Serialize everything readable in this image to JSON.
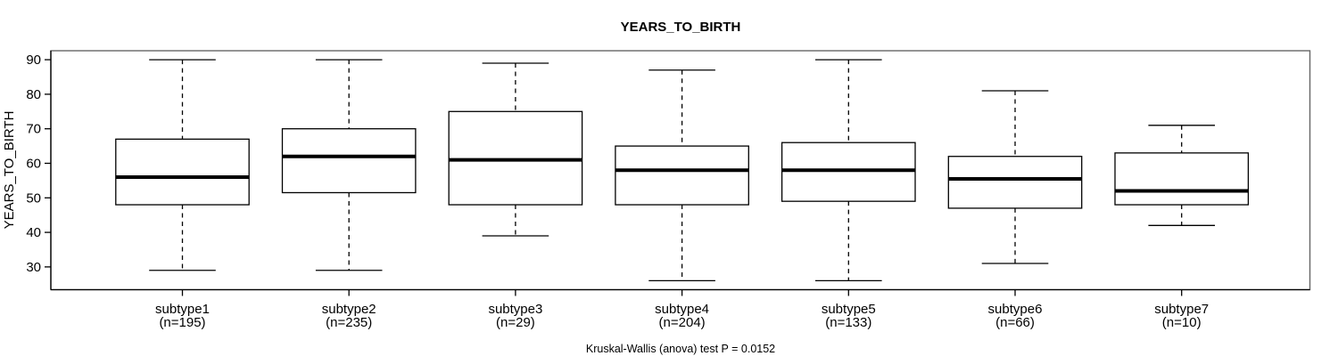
{
  "chart_data": {
    "type": "boxplot",
    "title": "YEARS_TO_BIRTH",
    "ylabel": "YEARS_TO_BIRTH",
    "xlabel": "",
    "footer": "Kruskal-Wallis (anova) test P = 0.0152",
    "ylim": [
      23.4,
      92.6
    ],
    "yticks": [
      30,
      40,
      50,
      60,
      70,
      80,
      90
    ],
    "grid": false,
    "legend": "none",
    "groups": [
      {
        "label": "subtype1",
        "n_label": "(n=195)",
        "n": 195,
        "low": 29,
        "q1": 48,
        "median": 56,
        "q3": 67,
        "high": 90
      },
      {
        "label": "subtype2",
        "n_label": "(n=235)",
        "n": 235,
        "low": 29,
        "q1": 51.5,
        "median": 62,
        "q3": 70,
        "high": 90
      },
      {
        "label": "subtype3",
        "n_label": "(n=29)",
        "n": 29,
        "low": 39,
        "q1": 48,
        "median": 61,
        "q3": 75,
        "high": 89
      },
      {
        "label": "subtype4",
        "n_label": "(n=204)",
        "n": 204,
        "low": 26,
        "q1": 48,
        "median": 58,
        "q3": 65,
        "high": 87
      },
      {
        "label": "subtype5",
        "n_label": "(n=133)",
        "n": 133,
        "low": 26,
        "q1": 49,
        "median": 58,
        "q3": 66,
        "high": 90
      },
      {
        "label": "subtype6",
        "n_label": "(n=66)",
        "n": 66,
        "low": 31,
        "q1": 47,
        "median": 55.5,
        "q3": 62,
        "high": 81
      },
      {
        "label": "subtype7",
        "n_label": "(n=10)",
        "n": 10,
        "low": 42,
        "q1": 48,
        "median": 52,
        "q3": 63,
        "high": 71
      }
    ],
    "colors": {
      "box_stroke": "#000000",
      "box_fill": "#ffffff",
      "median": "#000000",
      "whisker": "#000000",
      "frame": "#666666",
      "axis": "#000000",
      "background": "#ffffff"
    }
  }
}
